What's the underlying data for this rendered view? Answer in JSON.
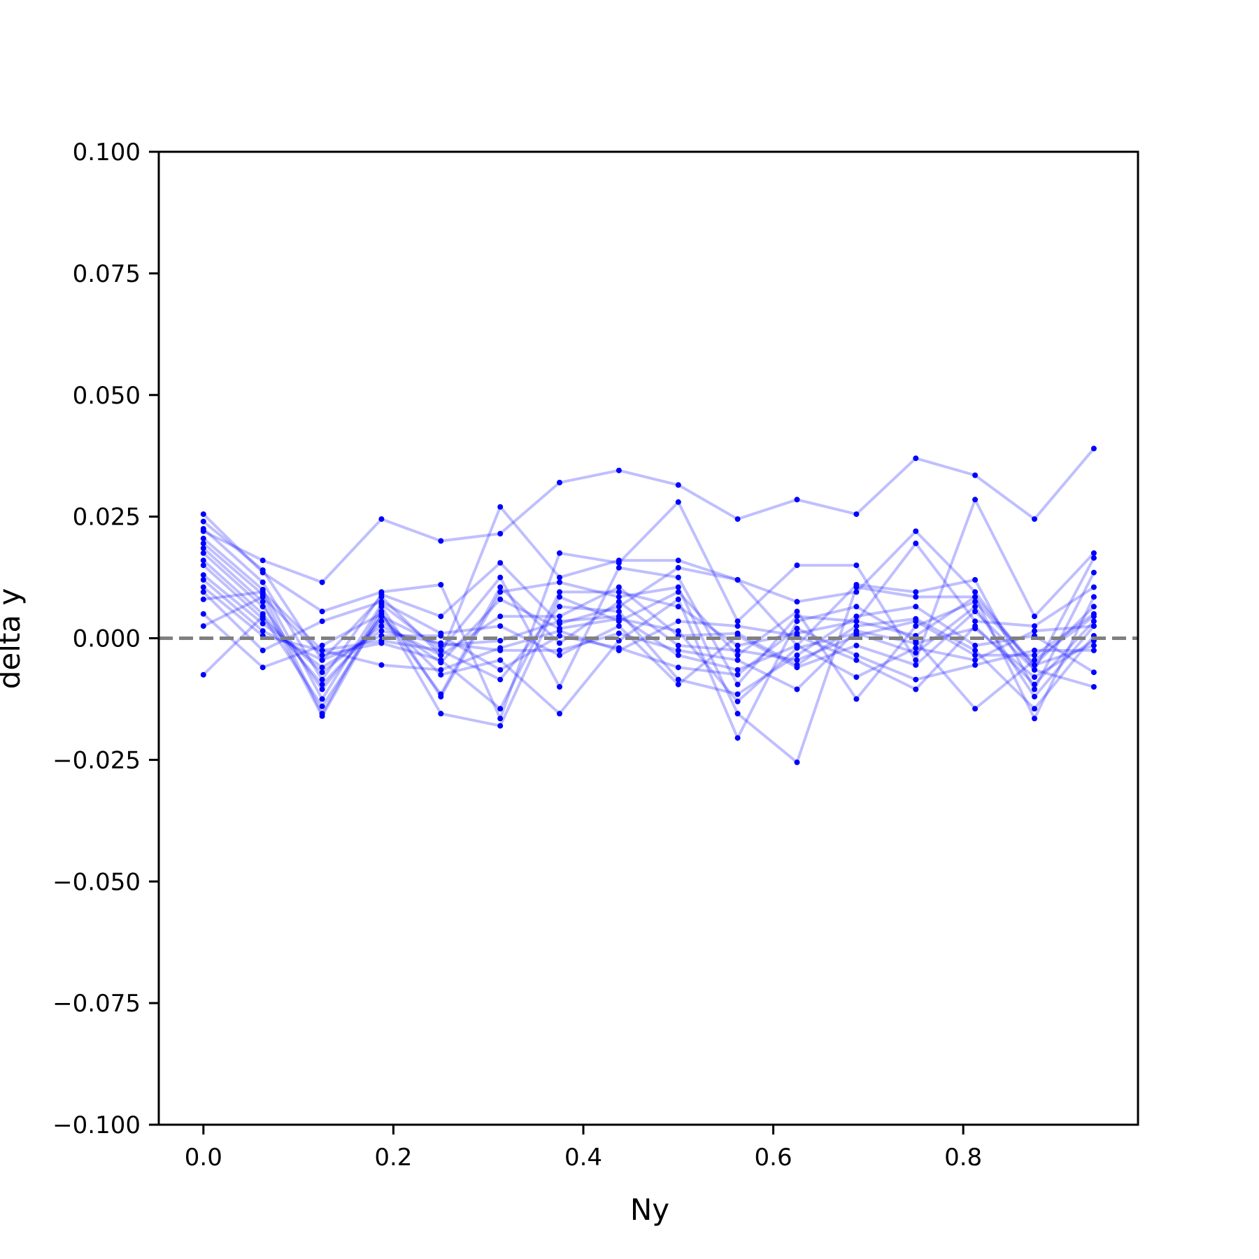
{
  "chart_data": {
    "type": "line",
    "xlabel": "Ny",
    "ylabel": "delta y",
    "xlim": [
      -0.047,
      0.984
    ],
    "ylim": [
      -0.1,
      0.1
    ],
    "xticks": [
      0.0,
      0.2,
      0.4,
      0.6,
      0.8
    ],
    "xtick_labels": [
      "0.0",
      "0.2",
      "0.4",
      "0.6",
      "0.8"
    ],
    "yticks": [
      -0.1,
      -0.075,
      -0.05,
      -0.025,
      0.0,
      0.025,
      0.05,
      0.075,
      0.1
    ],
    "ytick_labels": [
      "−0.100",
      "−0.075",
      "−0.050",
      "−0.025",
      "0.000",
      "0.025",
      "0.050",
      "0.075",
      "0.100"
    ],
    "reference_line": {
      "y": 0.0,
      "style": "dashed",
      "color": "#808080"
    },
    "line_color": "#0000ff",
    "line_alpha": 0.25,
    "marker_color": "#0000ff",
    "grid": false,
    "x": [
      0.0,
      0.0625,
      0.125,
      0.1875,
      0.25,
      0.3125,
      0.375,
      0.4375,
      0.5,
      0.5625,
      0.625,
      0.6875,
      0.75,
      0.8125,
      0.875,
      0.9375
    ],
    "series": [
      {
        "values": [
          0.022,
          0.016,
          0.0115,
          0.0245,
          0.02,
          0.0215,
          0.032,
          0.0345,
          0.0315,
          0.0245,
          0.0285,
          0.0255,
          0.037,
          0.0335,
          0.0245,
          0.039
        ]
      },
      {
        "values": [
          0.0255,
          0.0135,
          0.0055,
          0.0095,
          0.011,
          -0.0165,
          0.0175,
          0.0155,
          0.028,
          0.0035,
          0.015,
          0.015,
          -0.0045,
          0.0285,
          0.0045,
          0.0175
        ]
      },
      {
        "values": [
          0.024,
          0.014,
          -0.0045,
          0.0085,
          -0.0035,
          0.027,
          0.0125,
          0.016,
          0.016,
          0.012,
          0.0075,
          0.0095,
          0.022,
          0.0095,
          -0.0065,
          0.0165
        ]
      },
      {
        "values": [
          0.0225,
          0.0115,
          -0.0085,
          0.009,
          0.0045,
          0.0155,
          0.003,
          0.0065,
          0.0145,
          0.012,
          -0.0015,
          0.011,
          0.0095,
          0.012,
          -0.0105,
          0.0135
        ]
      },
      {
        "values": [
          0.0205,
          0.01,
          -0.0125,
          0.007,
          -0.0025,
          0.0125,
          -0.01,
          0.0145,
          0.0125,
          -0.0095,
          0.0045,
          0.0035,
          0.0195,
          0.0035,
          0.0025,
          0.0105
        ]
      },
      {
        "values": [
          0.0195,
          0.009,
          -0.0155,
          0.0065,
          -0.012,
          0.0095,
          0.0115,
          0.0085,
          0.0105,
          -0.0155,
          -0.0255,
          0.0105,
          0.0085,
          0.0085,
          -0.0165,
          0.0085
        ]
      },
      {
        "values": [
          0.0185,
          0.0075,
          -0.016,
          0.0055,
          -0.0155,
          -0.018,
          0.0085,
          0.0035,
          0.0095,
          -0.0035,
          0.0055,
          -0.0125,
          0.0025,
          0.0075,
          -0.0055,
          0.0065
        ]
      },
      {
        "values": [
          0.0175,
          0.0065,
          -0.0105,
          0.0045,
          -0.0075,
          -0.0045,
          -0.0155,
          -0.0005,
          0.008,
          -0.0205,
          0.0035,
          0.0065,
          -0.0005,
          -0.0145,
          -0.0045,
          0.0045
        ]
      },
      {
        "values": [
          0.016,
          0.005,
          -0.0095,
          0.0035,
          -0.005,
          0.008,
          0.002,
          0.004,
          0.0015,
          -0.013,
          -0.002,
          0.001,
          -0.003,
          0.0065,
          -0.012,
          0.0025
        ]
      },
      {
        "values": [
          0.015,
          0.004,
          -0.007,
          0.0025,
          -0.0035,
          0.0045,
          0.0045,
          0.0105,
          0.0005,
          0.001,
          -0.0055,
          0.0025,
          0.004,
          -0.0025,
          -0.0145,
          0.0005
        ]
      },
      {
        "values": [
          0.013,
          0.003,
          -0.006,
          0.0015,
          -0.001,
          -0.0025,
          -0.0025,
          0.001,
          -0.0025,
          -0.0045,
          -0.0105,
          0.0015,
          -0.001,
          0.002,
          -0.008,
          -0.0005
        ]
      },
      {
        "values": [
          0.012,
          0.0015,
          -0.0045,
          0.0005,
          0.0005,
          -0.0065,
          0.0005,
          -0.002,
          -0.006,
          -0.0075,
          0.002,
          -0.0035,
          -0.0085,
          -0.0055,
          -0.0025,
          -0.0025
        ]
      },
      {
        "values": [
          0.0105,
          0.0005,
          -0.0025,
          -0.0005,
          -0.0025,
          -0.0085,
          0.0065,
          0.0055,
          -0.0085,
          -0.0115,
          -0.0035,
          0.0045,
          0.0065,
          -0.0015,
          0.0005,
          -0.007
        ]
      },
      {
        "values": [
          0.0095,
          -0.0025,
          0.0035,
          0.0075,
          0.001,
          0.0025,
          -0.0035,
          0.0025,
          -0.0095,
          0.0005,
          -0.006,
          -0.0015,
          -0.0055,
          0.0055,
          -0.0065,
          -0.01
        ]
      },
      {
        "values": [
          0.008,
          0.0095,
          -0.0025,
          -0.0055,
          -0.0065,
          -0.002,
          0.0015,
          -0.0025,
          0.0035,
          0.0025,
          0.0005,
          -0.0045,
          -0.0105,
          0.0025,
          -0.0095,
          0.0035
        ]
      },
      {
        "values": [
          0.005,
          -0.006,
          -0.0015,
          0.005,
          -0.0115,
          0.0105,
          -0.001,
          0.0075,
          -0.0015,
          -0.0025,
          -0.0045,
          0.0005,
          0.0035,
          -0.0035,
          -0.0035,
          0.005
        ]
      },
      {
        "values": [
          0.0025,
          0.0085,
          -0.0035,
          -0.001,
          -0.0045,
          -0.0145,
          0.0095,
          0.0095,
          0.0065,
          -0.0015,
          0.001,
          0.0035,
          0.0005,
          0.0085,
          -0.0055,
          -0.0015
        ]
      },
      {
        "values": [
          -0.0075,
          0.0045,
          -0.014,
          0.0045,
          -0.0015,
          -0.0005,
          0.0035,
          0.0045,
          -0.0035,
          -0.0065,
          -0.0015,
          -0.008,
          -0.002,
          -0.0045,
          0.0015,
          0.0025
        ]
      }
    ]
  }
}
